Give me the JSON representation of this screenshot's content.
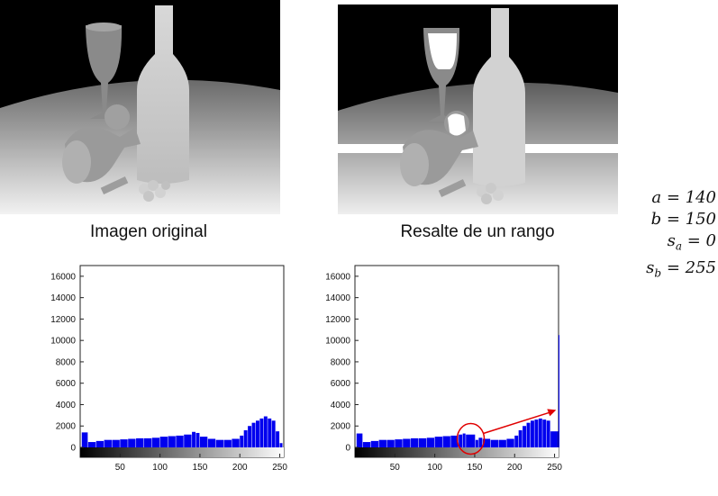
{
  "captions": {
    "left_image": "Imagen original",
    "right_image": "Resalte de un rango"
  },
  "parameters": [
    {
      "var": "a",
      "sub": "",
      "value": "140"
    },
    {
      "var": "b",
      "sub": "",
      "value": "150"
    },
    {
      "var": "s",
      "sub": "a",
      "value": "0"
    },
    {
      "var": "s",
      "sub": "b",
      "value": "255"
    }
  ],
  "colors": {
    "bar": "#0000ee",
    "highlight": "#e00000"
  },
  "chart_data": [
    {
      "type": "bar",
      "title": "",
      "xlabel": "",
      "ylabel": "",
      "xlim": [
        0,
        255
      ],
      "ylim": [
        0,
        17000
      ],
      "xticks": [
        "50",
        "100",
        "150",
        "200",
        "250"
      ],
      "yticks": [
        "0",
        "2000",
        "4000",
        "6000",
        "8000",
        "10000",
        "12000",
        "14000",
        "16000"
      ],
      "series": [
        {
          "x": [
            2,
            10,
            20,
            30,
            40,
            50,
            60,
            70,
            80,
            90,
            100,
            110,
            120,
            130,
            140,
            145,
            150,
            160,
            170,
            180,
            190,
            200,
            205,
            210,
            215,
            220,
            225,
            230,
            235,
            240,
            245,
            250
          ],
          "values": [
            1400,
            500,
            600,
            700,
            700,
            750,
            800,
            850,
            850,
            900,
            1000,
            1050,
            1100,
            1200,
            1450,
            1350,
            1000,
            800,
            700,
            700,
            800,
            1100,
            1600,
            2000,
            2300,
            2500,
            2700,
            2900,
            2700,
            2500,
            1500,
            400
          ]
        }
      ]
    },
    {
      "type": "bar",
      "title": "",
      "xlabel": "",
      "ylabel": "",
      "xlim": [
        0,
        255
      ],
      "ylim": [
        0,
        17000
      ],
      "xticks": [
        "50",
        "100",
        "150",
        "200",
        "250"
      ],
      "yticks": [
        "0",
        "2000",
        "4000",
        "6000",
        "8000",
        "10000",
        "12000",
        "14000",
        "16000"
      ],
      "series": [
        {
          "x": [
            2,
            10,
            20,
            30,
            40,
            50,
            60,
            70,
            80,
            90,
            100,
            110,
            120,
            130,
            135,
            139,
            151,
            155,
            160,
            170,
            180,
            190,
            200,
            205,
            210,
            215,
            220,
            225,
            230,
            235,
            240,
            245,
            255
          ],
          "values": [
            1300,
            500,
            600,
            700,
            700,
            750,
            800,
            850,
            850,
            900,
            1000,
            1050,
            1100,
            1200,
            1300,
            1200,
            700,
            900,
            800,
            700,
            700,
            800,
            1100,
            1600,
            2000,
            2300,
            2500,
            2600,
            2700,
            2600,
            2500,
            1500,
            10500
          ]
        }
      ],
      "annotation": {
        "circle_center_x": 145,
        "circle_center_y": 800,
        "arrow_to_x": 252,
        "arrow_to_y": 3500
      }
    }
  ]
}
